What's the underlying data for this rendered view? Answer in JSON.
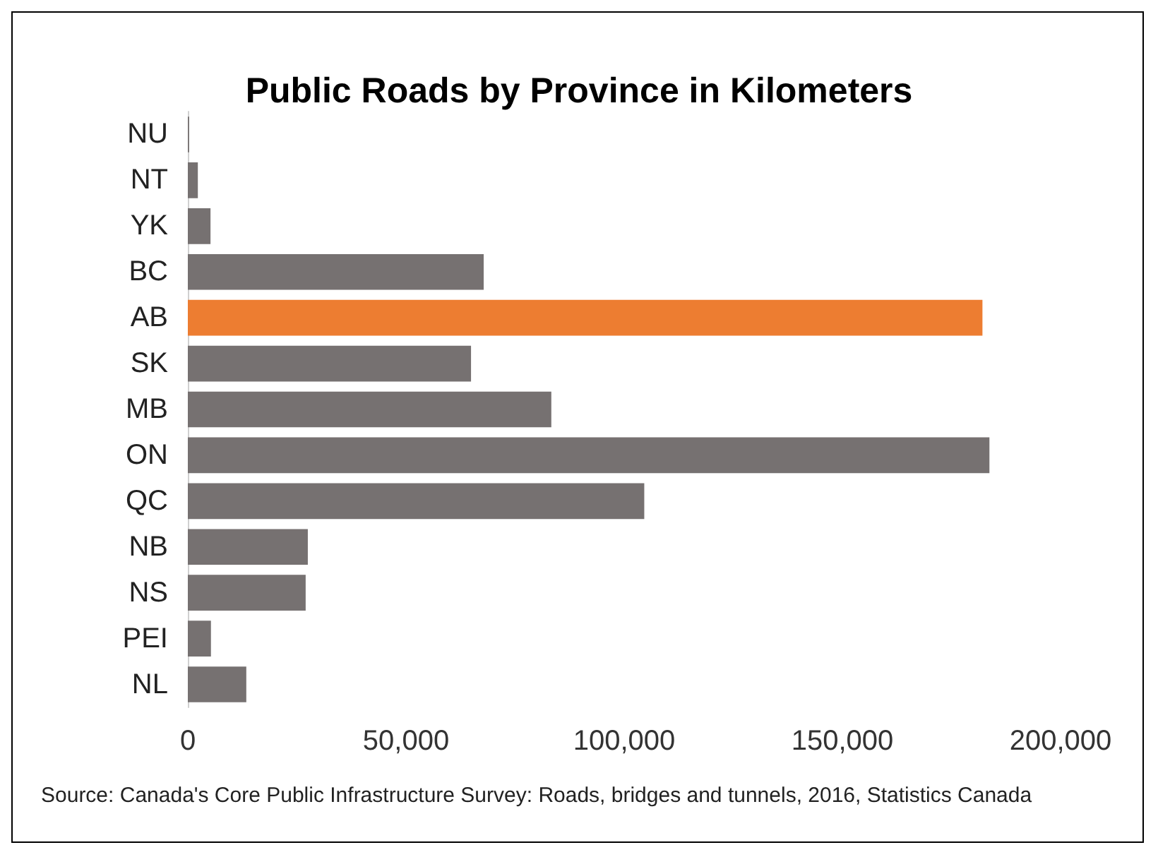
{
  "chart_data": {
    "type": "bar",
    "orientation": "horizontal",
    "title": "Public Roads by Province in Kilometers",
    "categories": [
      "NU",
      "NT",
      "YK",
      "BC",
      "AB",
      "SK",
      "MB",
      "ON",
      "QC",
      "NB",
      "NS",
      "PEI",
      "NL"
    ],
    "values": [
      300,
      2300,
      5200,
      67800,
      182100,
      64900,
      83300,
      183700,
      104600,
      27500,
      27000,
      5300,
      13400
    ],
    "colors": [
      "#767171",
      "#767171",
      "#767171",
      "#767171",
      "#ed7d31",
      "#767171",
      "#767171",
      "#767171",
      "#767171",
      "#767171",
      "#767171",
      "#767171",
      "#767171"
    ],
    "xlim": [
      0,
      200000
    ],
    "xticks": [
      {
        "value": 0,
        "label": "0"
      },
      {
        "value": 50000,
        "label": "50,000"
      },
      {
        "value": 100000,
        "label": "100,000"
      },
      {
        "value": 150000,
        "label": "150,000"
      },
      {
        "value": 200000,
        "label": "200,000"
      }
    ],
    "grid": false,
    "annotations": [
      "Source: Canada's Core Public Infrastructure Survey: Roads, bridges and tunnels, 2016, Statistics Canada"
    ]
  }
}
